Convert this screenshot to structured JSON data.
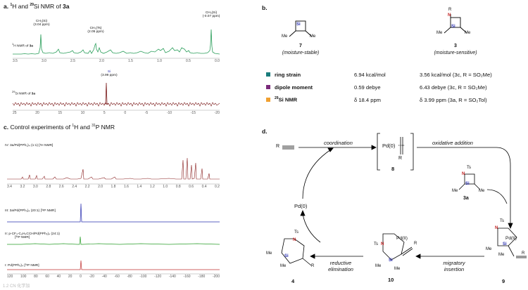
{
  "panel_a": {
    "title_prefix": "a.",
    "title_h": "1",
    "title_h2": "H and",
    "title_si": "29",
    "title_rest": "Si NMR of",
    "title_cmpd": "3a",
    "h_label": "H NMR of",
    "h_label_sup": "1",
    "h_label_cmpd": "3a",
    "si_label": "Si NMR of",
    "si_label_sup": "29",
    "si_label_cmpd": "3a",
    "peak1_name": "CH₂(Si)",
    "peak1_val": "(3.04 ppm)",
    "peak2_name": "CH₃(Ts)",
    "peak2_val": "(2.05 ppm)",
    "peak3_name": "CH₃(Si)",
    "peak3_val": "(-0.07 ppm)",
    "peak4_name": "Si",
    "peak4_val": "(3.99 ppm)",
    "h_ticks": [
      "3.5",
      "3.0",
      "2.5",
      "2.0",
      "1.5",
      "1.0",
      "0.5",
      "0.0"
    ],
    "si_ticks": [
      "25",
      "20",
      "15",
      "10",
      "5",
      "0",
      "-5",
      "-10",
      "-15",
      "-20"
    ]
  },
  "panel_b": {
    "title": "b.",
    "cmpd7_num": "7",
    "cmpd7_desc": "(moisture-stable)",
    "cmpd3_num": "3",
    "cmpd3_desc": "(moisture-sensitive)",
    "rows": [
      {
        "color": "#1a7c7c",
        "label": "ring strain",
        "v7": "6.94 kcal/mol",
        "v3": "3.56 kcal/mol (3c, R = SO₂Me)"
      },
      {
        "color": "#7a2a7a",
        "label": "dipole moment",
        "v7": "0.59 debye",
        "v3": "6.43 debye (3c, R = SO₂Me)"
      },
      {
        "color": "#f0a030",
        "label": "Si NMR",
        "label_sup": "29",
        "v7": "δ 18.4 ppm",
        "v3": "δ 3.99 ppm (3a, R = SO₂Tol)"
      }
    ]
  },
  "panel_c": {
    "title_prefix": "c.",
    "title_text": "Control experiments of",
    "title_h": "1",
    "title_h_rest": "H and",
    "title_p": "31",
    "title_p_rest": "P NMR",
    "spec4_label": "IV: 3a/Pd(PPh₃)₄ (1:1) [¹H NMR]",
    "spec3_label": "III: 3a/Pd(PPh₃)₄ (20:1) [³¹P NMR]",
    "spec2_label1": "II: p-CF₃-C₆H₄CCH/Pd(PPh₃)₄ (24:1)",
    "spec2_label2": "[³¹P NMR]",
    "spec1_label": "I: Pd(PPh₃)₄ [³¹P NMR]",
    "h_ticks": [
      "3.4",
      "3.2",
      "3.0",
      "2.8",
      "2.6",
      "2.4",
      "2.2",
      "2.0",
      "1.8",
      "1.6",
      "1.4",
      "1.2",
      "1.0",
      "0.8",
      "0.6",
      "0.4",
      "0.2"
    ],
    "p_ticks": [
      "120",
      "100",
      "80",
      "60",
      "40",
      "20",
      "0",
      "-20",
      "-40",
      "-60",
      "-80",
      "-100",
      "-120",
      "-140",
      "-160",
      "-180",
      "-200"
    ]
  },
  "panel_d": {
    "title": "d.",
    "step_coord": "coordination",
    "step_ox": "oxidative addition",
    "step_mig1": "migratory",
    "step_mig2": "insertion",
    "step_red1": "reductive",
    "step_red2": "elimination",
    "alkyne_r": "R",
    "pd0_complex": "Pd(0)",
    "pd0_r": "R",
    "cmpd8": "8",
    "pd0_cat": "Pd(0)",
    "cmpd3a": "3a",
    "cmpd9": "9",
    "cmpd10": "10",
    "cmpd4": "4",
    "ts": "Ts",
    "n": "N",
    "si": "Si",
    "me": "Me",
    "pd2": "Pd(II)",
    "r": "R"
  },
  "watermark": "1.2 CN 化学加"
}
